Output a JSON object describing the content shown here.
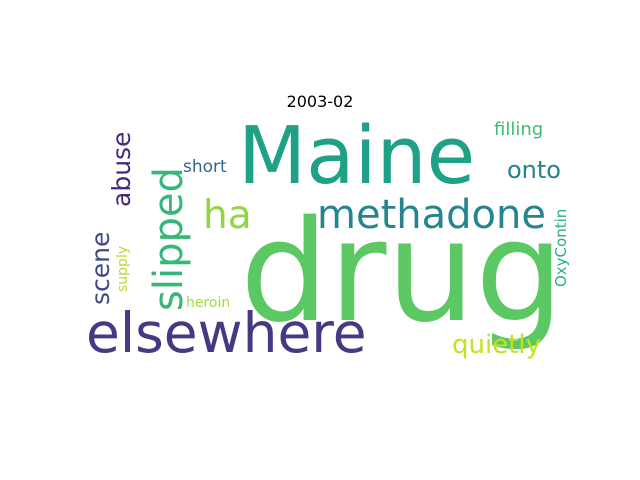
{
  "title": "2003-02",
  "words": [
    {
      "text": "drug",
      "color": "#5cc863"
    },
    {
      "text": "Maine",
      "color": "#1fa188"
    },
    {
      "text": "elsewhere",
      "color": "#443983"
    },
    {
      "text": "methadone",
      "color": "#25858e"
    },
    {
      "text": "slipped",
      "color": "#35b779"
    },
    {
      "text": "ha",
      "color": "#90d743"
    },
    {
      "text": "abuse",
      "color": "#482878"
    },
    {
      "text": "scene",
      "color": "#3e4989"
    },
    {
      "text": "quietly",
      "color": "#c8e020"
    },
    {
      "text": "onto",
      "color": "#26828e"
    },
    {
      "text": "filling",
      "color": "#3dbc74"
    },
    {
      "text": "short",
      "color": "#31688e"
    },
    {
      "text": "OxyContin",
      "color": "#2ab07f"
    },
    {
      "text": "supply",
      "color": "#b8de29"
    },
    {
      "text": "heroin",
      "color": "#a5db36"
    }
  ]
}
